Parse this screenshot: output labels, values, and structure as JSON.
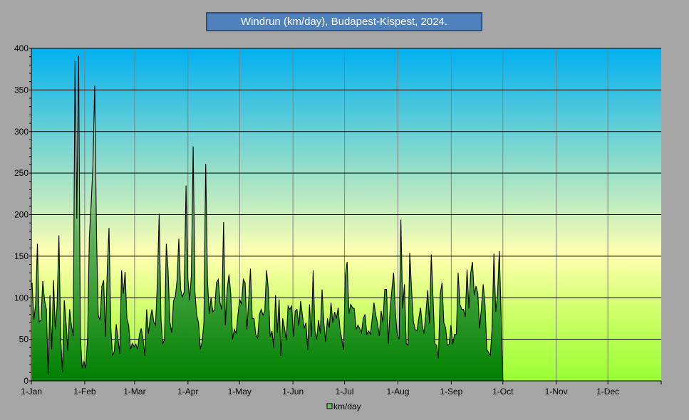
{
  "chart_data": {
    "type": "area",
    "title": "Windrun (km/day), Budapest-Kispest,  2024.",
    "xlabel": "",
    "ylabel": "",
    "ylim": [
      0,
      400
    ],
    "yticks": [
      "0",
      "50",
      "100",
      "150",
      "200",
      "250",
      "300",
      "350",
      "400"
    ],
    "xticks": [
      "1-Jan",
      "1-Feb",
      "1-Mar",
      "1-Apr",
      "1-May",
      "1-Jun",
      "1-Jul",
      "1-Aug",
      "1-Sep",
      "1-Oct",
      "1-Nov",
      "1-Dec"
    ],
    "xtick_days": [
      0,
      31,
      60,
      91,
      121,
      152,
      182,
      213,
      244,
      274,
      305,
      335
    ],
    "days_in_year": 366,
    "data_last_day": 274,
    "grid": true,
    "legend": "bottom",
    "series": [
      {
        "name": "km/day",
        "values": [
          118,
          73,
          92,
          165,
          71,
          73,
          120,
          97,
          86,
          7,
          103,
          38,
          121,
          62,
          90,
          175,
          50,
          10,
          97,
          70,
          36,
          86,
          67,
          54,
          385,
          195,
          391,
          53,
          15,
          23,
          15,
          50,
          173,
          212,
          258,
          355,
          178,
          79,
          73,
          114,
          121,
          53,
          133,
          184,
          64,
          30,
          36,
          68,
          50,
          33,
          133,
          105,
          131,
          75,
          67,
          38,
          45,
          41,
          44,
          38,
          56,
          63,
          50,
          30,
          86,
          57,
          75,
          86,
          71,
          67,
          118,
          201,
          75,
          44,
          50,
          165,
          133,
          71,
          58,
          96,
          101,
          121,
          171,
          110,
          101,
          107,
          235,
          124,
          97,
          127,
          282,
          107,
          79,
          70,
          38,
          47,
          70,
          261,
          121,
          81,
          100,
          83,
          86,
          118,
          122,
          94,
          86,
          191,
          67,
          110,
          128,
          104,
          50,
          62,
          57,
          79,
          98,
          92,
          122,
          118,
          62,
          96,
          135,
          75,
          75,
          56,
          51,
          80,
          86,
          79,
          84,
          133,
          110,
          53,
          60,
          40,
          103,
          58,
          98,
          30,
          75,
          64,
          49,
          90,
          86,
          90,
          53,
          84,
          86,
          66,
          96,
          79,
          63,
          70,
          37,
          92,
          53,
          133,
          60,
          50,
          73,
          57,
          110,
          70,
          47,
          75,
          64,
          94,
          70,
          83,
          75,
          88,
          63,
          50,
          37,
          127,
          143,
          81,
          92,
          88,
          87,
          62,
          67,
          63,
          58,
          75,
          80,
          56,
          60,
          56,
          75,
          94,
          79,
          69,
          54,
          84,
          70,
          110,
          110,
          45,
          86,
          110,
          130,
          81,
          56,
          50,
          194,
          87,
          116,
          45,
          43,
          154,
          110,
          71,
          62,
          60,
          75,
          88,
          66,
          57,
          81,
          109,
          69,
          152,
          98,
          45,
          43,
          27,
          104,
          118,
          70,
          64,
          43,
          44,
          67,
          44,
          56,
          56,
          130,
          92,
          86,
          86,
          77,
          134,
          87,
          130,
          143,
          103,
          114,
          105,
          63,
          87,
          116,
          92,
          38,
          34,
          31,
          64,
          153,
          83,
          104,
          156,
          79,
          0
        ]
      }
    ]
  },
  "colors": {
    "background": "#a5a5a5",
    "title_box": "#4f81bd",
    "sky_top": "#00b0f0",
    "mid": "#ffffb0",
    "ground": "#99ff33",
    "fill_bottom": "#008000"
  }
}
